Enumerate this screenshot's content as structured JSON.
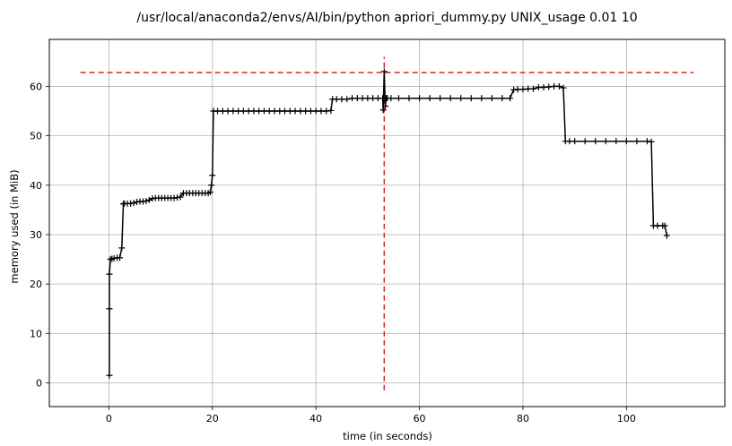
{
  "chart_data": {
    "type": "line",
    "title": "/usr/local/anaconda2/envs/AI/bin/python apriori_dummy.py UNIX_usage 0.01 10",
    "xlabel": "time (in seconds)",
    "ylabel": "memory used (in MiB)",
    "xlim": [
      -11.5,
      119
    ],
    "ylim": [
      -4.8,
      69.5
    ],
    "xticks": [
      0,
      20,
      40,
      60,
      80,
      100
    ],
    "yticks": [
      0,
      10,
      20,
      30,
      40,
      50,
      60
    ],
    "grid": true,
    "colors": {
      "series": "#000000",
      "markers": "#d62728"
    },
    "series": [
      {
        "x": [
          0.1,
          0.1,
          0.1,
          0.3,
          0.6,
          1.0,
          1.6,
          2.1,
          2.5,
          2.8,
          3.0,
          3.6,
          4.2,
          4.8,
          5.4,
          6.0,
          6.6,
          7.2,
          7.8,
          8.4,
          9.0,
          9.6,
          10.2,
          10.8,
          11.4,
          12.0,
          12.6,
          13.2,
          13.8,
          14.4,
          15.0,
          15.6,
          16.2,
          16.8,
          17.4,
          18.0,
          18.6,
          19.2,
          19.6,
          19.8,
          20.0,
          20.2,
          21.0,
          22.0,
          23.0,
          24.0,
          25.0,
          26.0,
          27.0,
          28.0,
          29.0,
          30.0,
          31.0,
          32.0,
          33.0,
          34.0,
          35.0,
          36.0,
          37.0,
          38.0,
          39.0,
          40.0,
          41.0,
          42.0,
          42.9,
          43.2,
          44.0,
          45.0,
          46.0,
          47.0,
          48.0,
          49.0,
          50.0,
          51.0,
          52.0,
          52.9,
          53.0,
          53.2,
          53.4,
          53.6,
          53.8,
          54.5,
          56.0,
          58.0,
          60.0,
          62.0,
          64.0,
          66.0,
          68.0,
          70.0,
          72.0,
          74.0,
          76.0,
          77.5,
          78.2,
          79.0,
          80.0,
          81.0,
          82.0,
          83.0,
          84.0,
          85.0,
          86.0,
          87.0,
          87.8,
          88.2,
          89.0,
          90.0,
          92.0,
          94.0,
          96.0,
          98.0,
          100.0,
          102.0,
          104.0,
          104.8,
          105.2,
          106.0,
          107.0,
          107.4,
          107.8
        ],
        "y": [
          1.5,
          15.0,
          22.0,
          25.0,
          25.1,
          25.2,
          25.3,
          25.3,
          27.3,
          36.2,
          36.3,
          36.3,
          36.3,
          36.4,
          36.6,
          36.7,
          36.7,
          36.8,
          37.0,
          37.3,
          37.4,
          37.4,
          37.4,
          37.4,
          37.4,
          37.4,
          37.4,
          37.5,
          37.6,
          38.4,
          38.4,
          38.4,
          38.4,
          38.4,
          38.4,
          38.4,
          38.4,
          38.4,
          38.6,
          40.0,
          42.0,
          55.0,
          55.0,
          55.0,
          55.0,
          55.0,
          55.0,
          55.0,
          55.0,
          55.0,
          55.0,
          55.0,
          55.0,
          55.0,
          55.0,
          55.0,
          55.0,
          55.0,
          55.0,
          55.0,
          55.0,
          55.0,
          55.0,
          55.0,
          55.1,
          57.4,
          57.4,
          57.4,
          57.4,
          57.6,
          57.6,
          57.6,
          57.6,
          57.6,
          57.6,
          57.6,
          55.2,
          63.0,
          56.0,
          57.6,
          57.6,
          57.6,
          57.6,
          57.6,
          57.6,
          57.6,
          57.6,
          57.6,
          57.6,
          57.6,
          57.6,
          57.6,
          57.6,
          57.6,
          59.3,
          59.4,
          59.4,
          59.5,
          59.5,
          59.8,
          59.8,
          59.9,
          60.0,
          60.0,
          59.7,
          48.9,
          48.9,
          48.9,
          48.9,
          48.9,
          48.9,
          48.9,
          48.9,
          48.9,
          48.9,
          48.8,
          31.8,
          31.8,
          31.8,
          31.8,
          29.8
        ]
      }
    ],
    "markers": {
      "hline_y": 62.8,
      "hline_x": [
        -5.5,
        113
      ],
      "vline_x": 53.2,
      "vline_y": [
        -1.5,
        66
      ]
    }
  }
}
